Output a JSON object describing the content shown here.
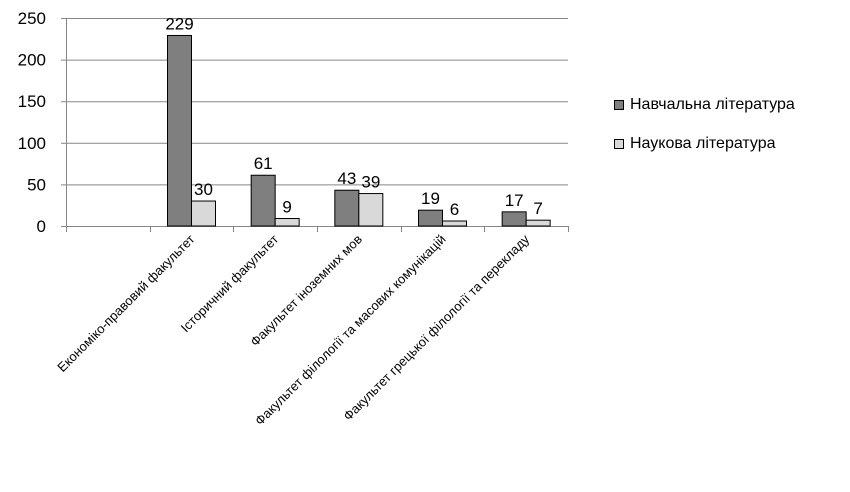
{
  "chart_data": {
    "type": "bar",
    "categories": [
      "",
      "Економіко-правовий факультет",
      "Історичний факультет",
      "Факультет іноземних мов",
      "Факультет філології та масових комунікацій",
      "Факультет грецької філології та перекладу"
    ],
    "series": [
      {
        "name": "Навчальна література",
        "values": [
          null,
          229,
          61,
          43,
          19,
          17
        ],
        "color": "#7f7f7f"
      },
      {
        "name": "Наукова література",
        "values": [
          null,
          30,
          9,
          39,
          6,
          7
        ],
        "color": "#d9d9d9"
      }
    ],
    "ylim": [
      0,
      250
    ],
    "yticks": [
      0,
      50,
      100,
      150,
      200,
      250
    ],
    "grid": true,
    "legend_position": "right",
    "data_labels": true
  }
}
